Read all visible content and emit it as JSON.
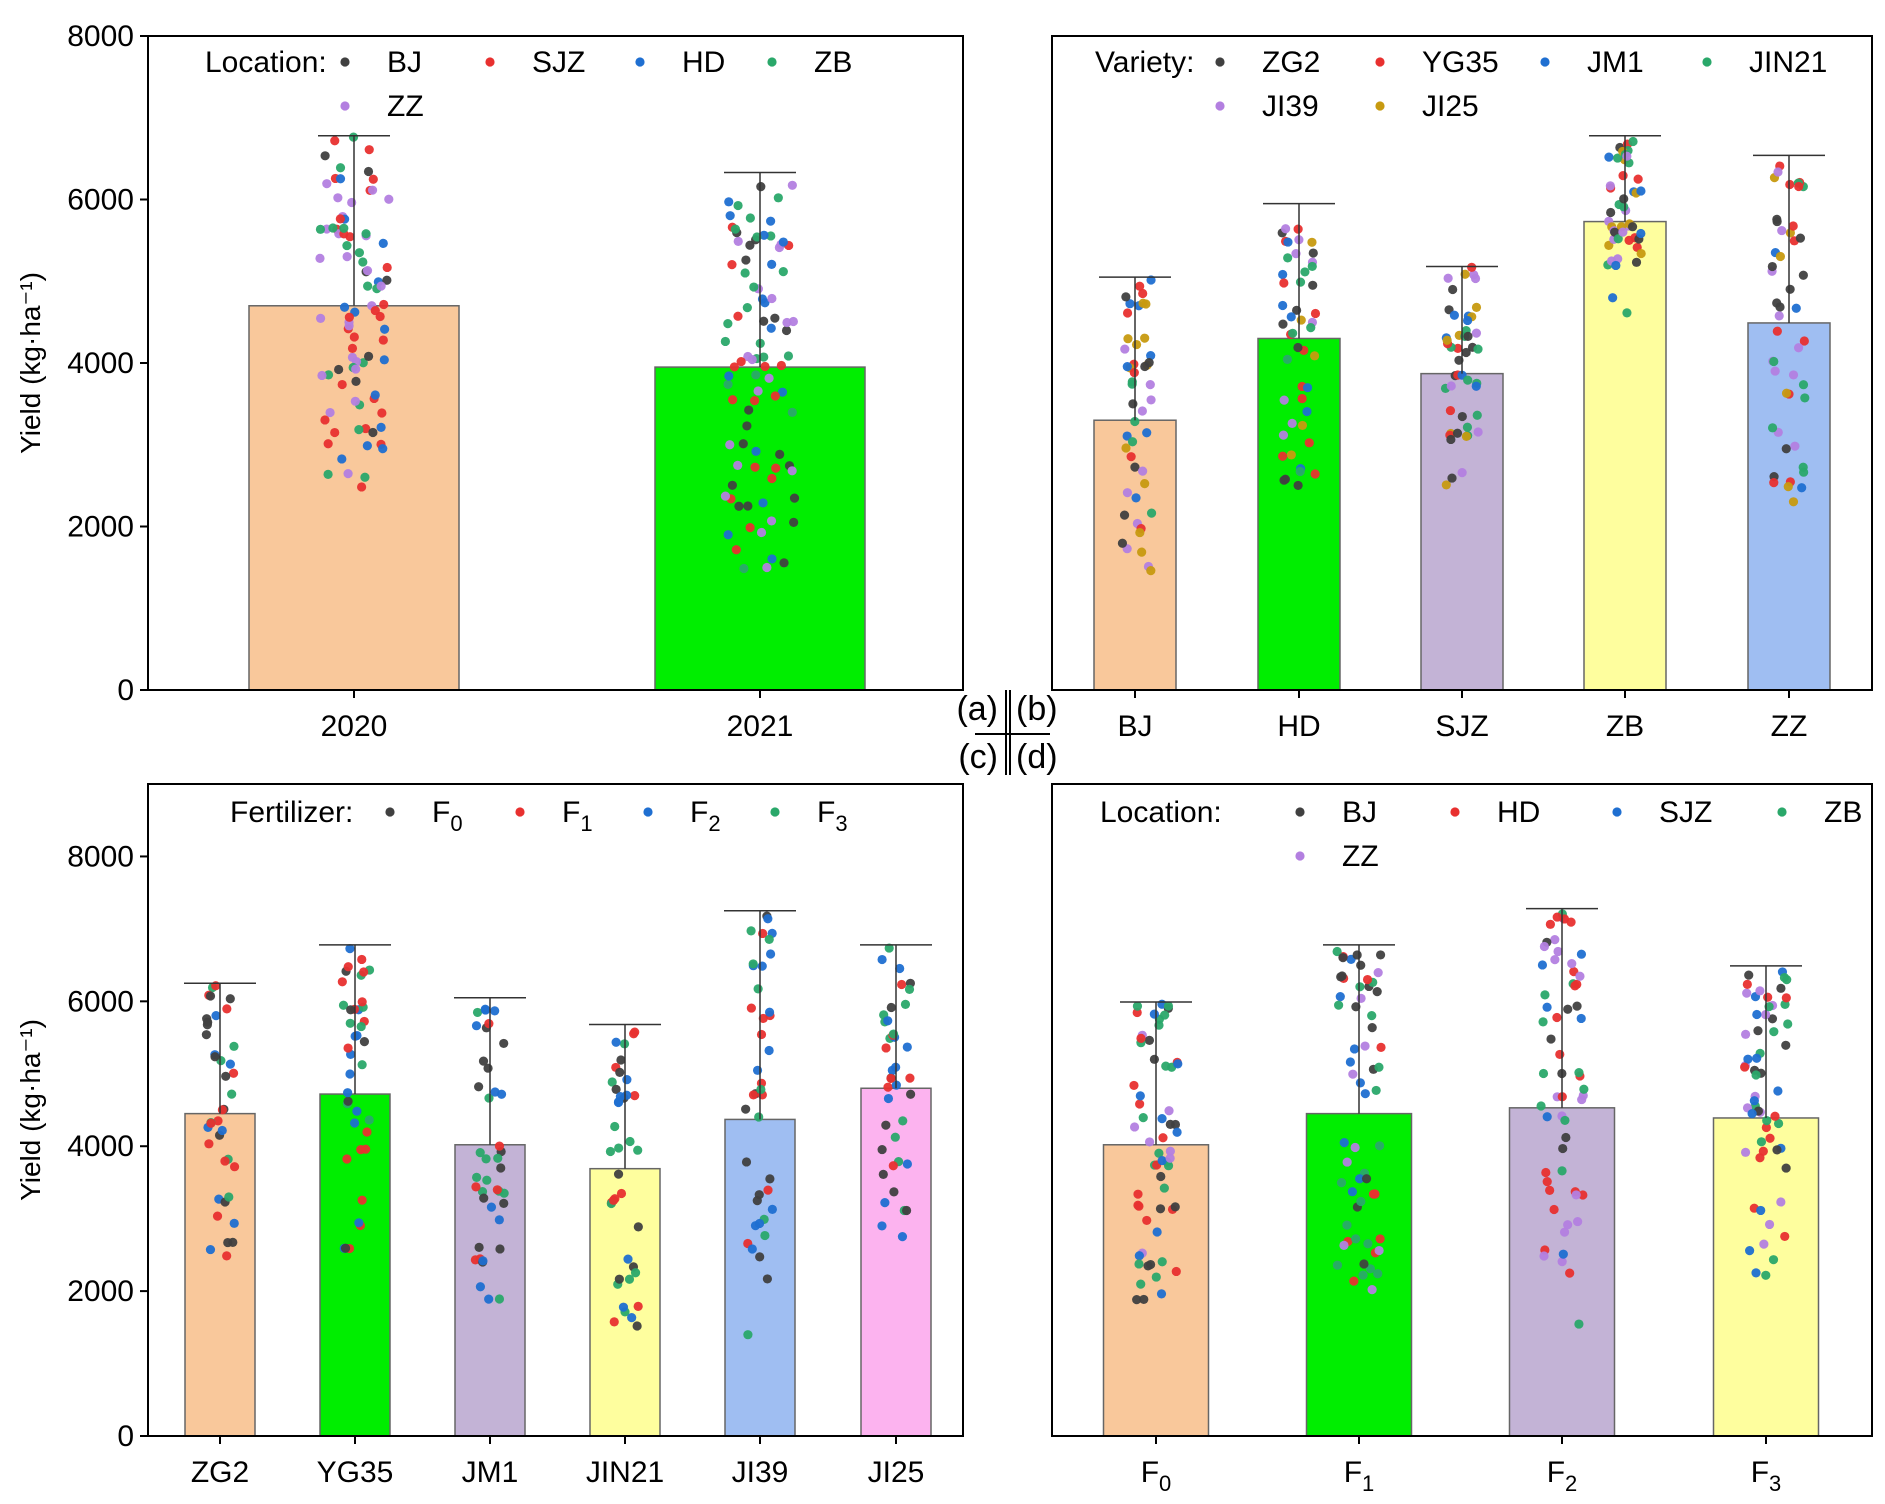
{
  "panel_tags": {
    "top_left": "(a)",
    "top_right": "(b)",
    "bottom_left": "(c)",
    "bottom_right": "(d)"
  },
  "chart_data": [
    {
      "id": "a",
      "type": "bar",
      "ylabel": "Yield (kg·ha⁻¹)",
      "ylim": [
        0,
        8000
      ],
      "yticks": [
        0,
        2000,
        4000,
        6000,
        8000
      ],
      "categories": [
        "2020",
        "2021"
      ],
      "values": [
        4700,
        3950
      ],
      "err_max": [
        6780,
        6330
      ],
      "bar_colors": [
        "#f9c89b",
        "#00ee00"
      ],
      "legend_title": "Location:",
      "legend": [
        {
          "name": "BJ",
          "color": "#404040"
        },
        {
          "name": "SJZ",
          "color": "#e8302f"
        },
        {
          "name": "HD",
          "color": "#1f6fd1"
        },
        {
          "name": "ZB",
          "color": "#2aa86a"
        },
        {
          "name": "ZZ",
          "color": "#b37fe0"
        }
      ]
    },
    {
      "id": "b",
      "type": "bar",
      "ylim": [
        0,
        8000
      ],
      "categories": [
        "BJ",
        "HD",
        "SJZ",
        "ZB",
        "ZZ"
      ],
      "values": [
        3300,
        4300,
        3870,
        5730,
        4490
      ],
      "err_max": [
        5050,
        5950,
        5180,
        6780,
        6540
      ],
      "bar_colors": [
        "#f9c89b",
        "#00ee00",
        "#c3b3d6",
        "#fefe9e",
        "#9fbef2"
      ],
      "legend_title": "Variety:",
      "legend": [
        {
          "name": "ZG2",
          "color": "#404040"
        },
        {
          "name": "YG35",
          "color": "#e8302f"
        },
        {
          "name": "JM1",
          "color": "#1f6fd1"
        },
        {
          "name": "JIN21",
          "color": "#2aa86a"
        },
        {
          "name": "JI39",
          "color": "#b37fe0"
        },
        {
          "name": "JI25",
          "color": "#c79a10"
        }
      ]
    },
    {
      "id": "c",
      "type": "bar",
      "ylabel": "Yield (kg·ha⁻¹)",
      "ylim": [
        0,
        9000
      ],
      "yticks": [
        0,
        2000,
        4000,
        6000,
        8000
      ],
      "categories": [
        "ZG2",
        "YG35",
        "JM1",
        "JIN21",
        "JI39",
        "JI25"
      ],
      "values": [
        4450,
        4720,
        4020,
        3690,
        4370,
        4800
      ],
      "err_max": [
        6250,
        6780,
        6050,
        5680,
        7250,
        6780
      ],
      "bar_colors": [
        "#f9c89b",
        "#00ee00",
        "#c3b3d6",
        "#fefe9e",
        "#9fbef2",
        "#fcb3ef"
      ],
      "legend_title": "Fertilizer:",
      "legend": [
        {
          "name": "F",
          "sub": "0",
          "color": "#404040"
        },
        {
          "name": "F",
          "sub": "1",
          "color": "#e8302f"
        },
        {
          "name": "F",
          "sub": "2",
          "color": "#1f6fd1"
        },
        {
          "name": "F",
          "sub": "3",
          "color": "#2aa86a"
        }
      ]
    },
    {
      "id": "d",
      "type": "bar",
      "ylim": [
        0,
        9000
      ],
      "categories": [
        {
          "name": "F",
          "sub": "0"
        },
        {
          "name": "F",
          "sub": "1"
        },
        {
          "name": "F",
          "sub": "2"
        },
        {
          "name": "F",
          "sub": "3"
        }
      ],
      "values": [
        4020,
        4450,
        4530,
        4390
      ],
      "err_max": [
        5990,
        6780,
        7280,
        6490
      ],
      "bar_colors": [
        "#f9c89b",
        "#00ee00",
        "#c3b3d6",
        "#fefe9e"
      ],
      "legend_title": "Location:",
      "legend": [
        {
          "name": "BJ",
          "color": "#404040"
        },
        {
          "name": "HD",
          "color": "#e8302f"
        },
        {
          "name": "SJZ",
          "color": "#1f6fd1"
        },
        {
          "name": "ZB",
          "color": "#2aa86a"
        },
        {
          "name": "ZZ",
          "color": "#b37fe0"
        }
      ]
    }
  ]
}
